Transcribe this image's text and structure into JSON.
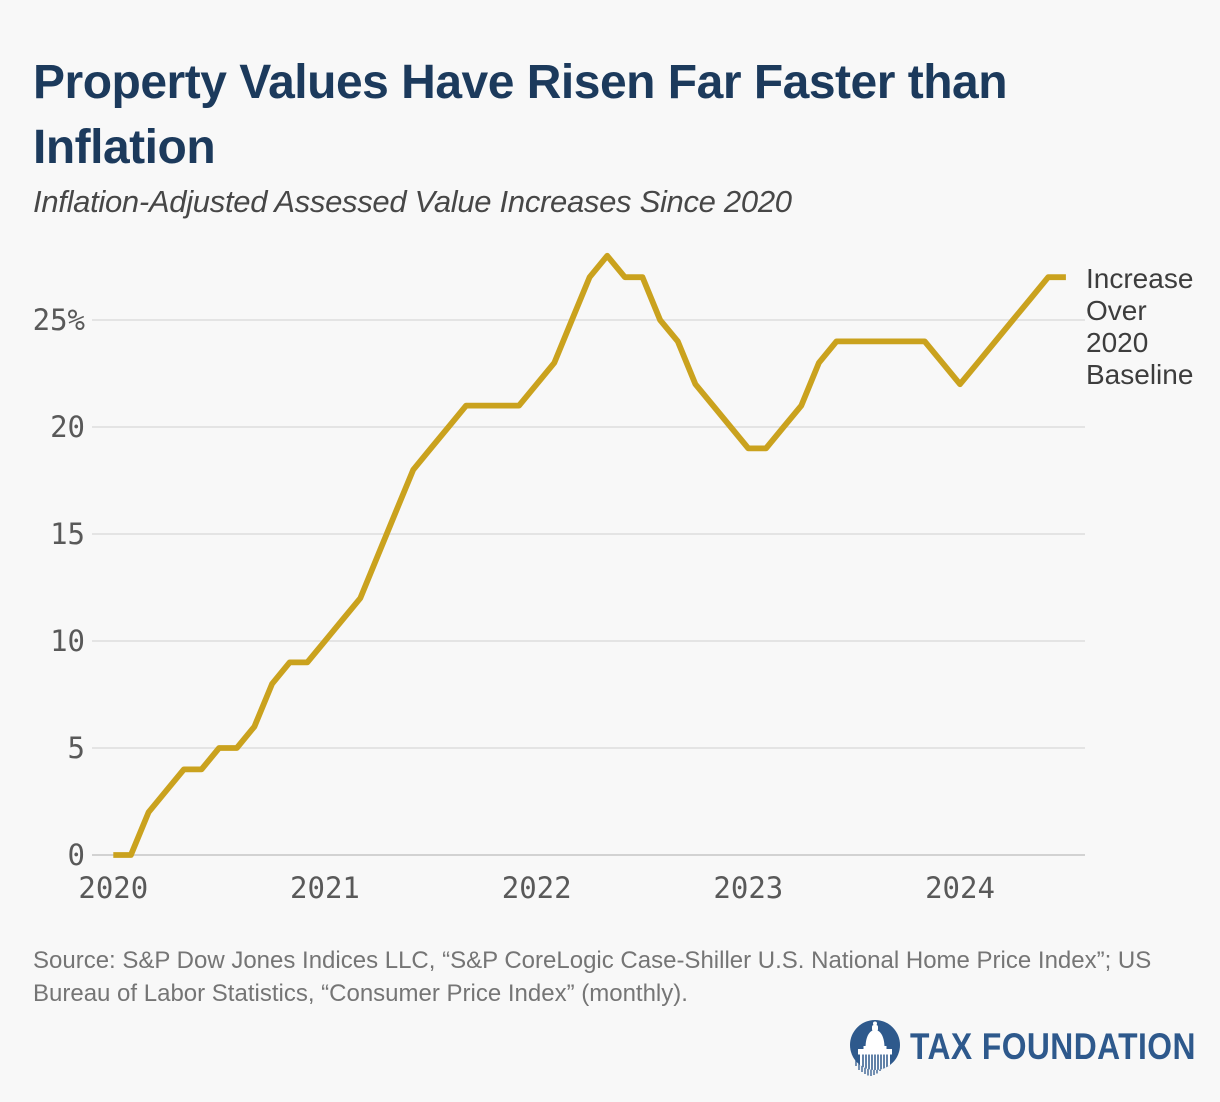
{
  "header": {
    "title": "Property Values Have Risen Far Faster than\nInflation",
    "subtitle": "Inflation-Adjusted Assessed Value Increases Since 2020"
  },
  "chart_data": {
    "type": "line",
    "title": "Property Values Have Risen Far Faster than Inflation",
    "subtitle": "Inflation-Adjusted Assessed Value Increases Since 2020",
    "xlabel": "",
    "ylabel": "",
    "ylim": [
      0,
      28.5
    ],
    "grid": true,
    "legend_position": "right-of-line-end",
    "legend_label_multiline": "Increase\nOver\n2020\nBaseline",
    "y_ticks": [
      {
        "label": "0",
        "value": 0
      },
      {
        "label": "5",
        "value": 5
      },
      {
        "label": "10",
        "value": 10
      },
      {
        "label": "15",
        "value": 15
      },
      {
        "label": "20",
        "value": 20
      },
      {
        "label": "25%",
        "value": 25
      }
    ],
    "x_ticks": [
      {
        "label": "2020",
        "month_index": 0
      },
      {
        "label": "2021",
        "month_index": 12
      },
      {
        "label": "2022",
        "month_index": 24
      },
      {
        "label": "2023",
        "month_index": 36
      },
      {
        "label": "2024",
        "month_index": 48
      }
    ],
    "series": [
      {
        "name": "Increase Over 2020 Baseline",
        "color": "#caa21e",
        "start": "2020-01",
        "frequency": "monthly",
        "unit": "percent",
        "values": [
          0,
          0,
          2,
          3,
          4,
          4,
          5,
          5,
          6,
          8,
          9,
          9,
          10,
          11,
          12,
          14,
          16,
          18,
          19,
          20,
          21,
          21,
          21,
          21,
          22,
          23,
          25,
          27,
          28,
          27,
          27,
          25,
          24,
          22,
          21,
          20,
          19,
          19,
          20,
          21,
          23,
          24,
          24,
          24,
          24,
          24,
          24,
          23,
          22,
          23,
          24,
          25,
          26,
          27,
          27
        ]
      }
    ]
  },
  "footer": {
    "source": "Source: S&P Dow Jones Indices LLC, “S&P CoreLogic Case-Shiller U.S. National Home Price Index”; US\nBureau of Labor Statistics, “Consumer Price Index” (monthly).",
    "brand": "TAX FOUNDATION"
  },
  "colors": {
    "accent_gold": "#caa21e",
    "title_navy": "#1c3a5c",
    "brand_blue": "#2e598c",
    "grid": "#dddddd",
    "background": "#f8f8f8"
  }
}
